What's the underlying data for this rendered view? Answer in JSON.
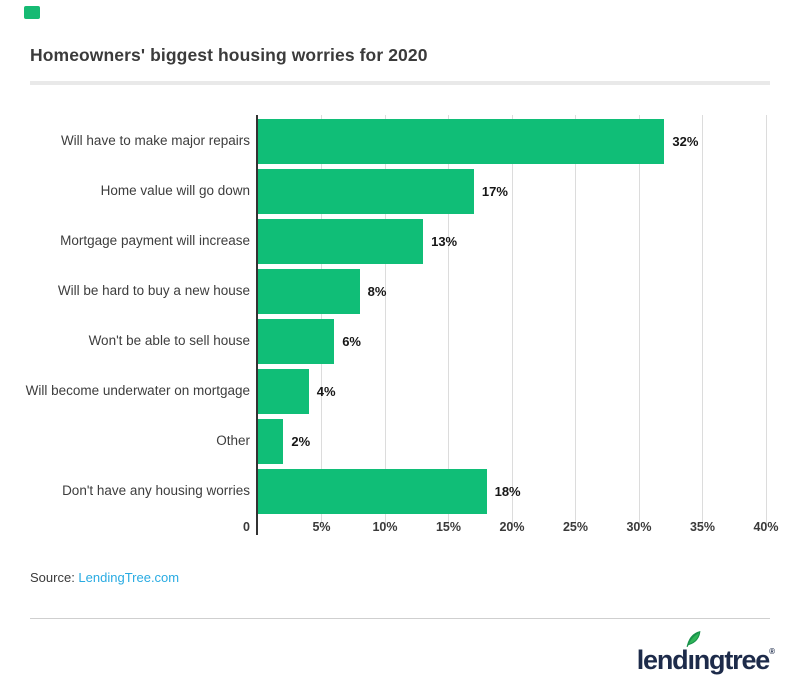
{
  "header": {
    "title": "Homeowners' biggest housing worries for 2020"
  },
  "chart_data": {
    "type": "bar",
    "orientation": "horizontal",
    "title": "Homeowners' biggest housing worries for 2020",
    "categories": [
      "Will have to make major repairs",
      "Home value will go down",
      "Mortgage payment will increase",
      "Will be hard to buy a new house",
      "Won't be able to sell house",
      "Will become underwater on mortgage",
      "Other",
      "Don't have any housing worries"
    ],
    "values": [
      32,
      17,
      13,
      8,
      6,
      4,
      2,
      18
    ],
    "value_labels": [
      "32%",
      "17%",
      "13%",
      "8%",
      "6%",
      "4%",
      "2%",
      "18%"
    ],
    "xlabel": "",
    "ylabel": "",
    "xlim": [
      0,
      40
    ],
    "x_ticks": [
      "0",
      "5%",
      "10%",
      "15%",
      "20%",
      "25%",
      "30%",
      "35%",
      "40%"
    ],
    "grid": true,
    "legend": "none",
    "bar_color": "#10BE77"
  },
  "source": {
    "label": "Source: ",
    "link_text": "LendingTree.com"
  },
  "footer_logo": {
    "part1": "lend",
    "dotless_i": "ı",
    "part2": "ngtree",
    "registered": "®"
  },
  "colors": {
    "bar_green": "#10BE77",
    "accent_green": "#16BA73",
    "source_link_blue": "#29ABE2",
    "logo_navy": "#1D2B4A",
    "leaf_green": "#2FB457",
    "leaf_outline_green": "#18914B"
  }
}
